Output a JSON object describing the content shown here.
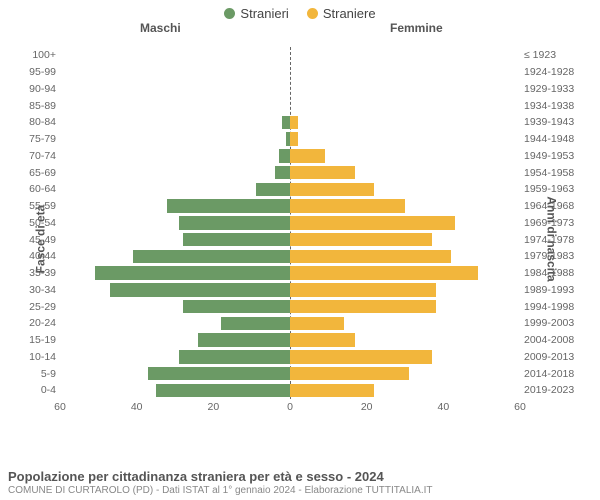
{
  "legend": {
    "male": {
      "label": "Stranieri",
      "color": "#6b9a65"
    },
    "female": {
      "label": "Straniere",
      "color": "#f2b63c"
    }
  },
  "headers": {
    "left": "Maschi",
    "right": "Femmine"
  },
  "yaxis_left_title": "Fasce di età",
  "yaxis_right_title": "Anni di nascita",
  "chart": {
    "type": "population-pyramid",
    "xmax": 60,
    "xticks_left": [
      60,
      40,
      20,
      0
    ],
    "xticks_right": [
      0,
      20,
      40,
      60
    ],
    "background_color": "#ffffff",
    "bar_gap_pct": 20,
    "rows": [
      {
        "age": "100+",
        "birth": "≤ 1923",
        "m": 0,
        "f": 0
      },
      {
        "age": "95-99",
        "birth": "1924-1928",
        "m": 0,
        "f": 0
      },
      {
        "age": "90-94",
        "birth": "1929-1933",
        "m": 0,
        "f": 0
      },
      {
        "age": "85-89",
        "birth": "1934-1938",
        "m": 0,
        "f": 0
      },
      {
        "age": "80-84",
        "birth": "1939-1943",
        "m": 2,
        "f": 2
      },
      {
        "age": "75-79",
        "birth": "1944-1948",
        "m": 1,
        "f": 2
      },
      {
        "age": "70-74",
        "birth": "1949-1953",
        "m": 3,
        "f": 9
      },
      {
        "age": "65-69",
        "birth": "1954-1958",
        "m": 4,
        "f": 17
      },
      {
        "age": "60-64",
        "birth": "1959-1963",
        "m": 9,
        "f": 22
      },
      {
        "age": "55-59",
        "birth": "1964-1968",
        "m": 32,
        "f": 30
      },
      {
        "age": "50-54",
        "birth": "1969-1973",
        "m": 29,
        "f": 43
      },
      {
        "age": "45-49",
        "birth": "1974-1978",
        "m": 28,
        "f": 37
      },
      {
        "age": "40-44",
        "birth": "1979-1983",
        "m": 41,
        "f": 42
      },
      {
        "age": "35-39",
        "birth": "1984-1988",
        "m": 51,
        "f": 49
      },
      {
        "age": "30-34",
        "birth": "1989-1993",
        "m": 47,
        "f": 38
      },
      {
        "age": "25-29",
        "birth": "1994-1998",
        "m": 28,
        "f": 38
      },
      {
        "age": "20-24",
        "birth": "1999-2003",
        "m": 18,
        "f": 14
      },
      {
        "age": "15-19",
        "birth": "2004-2008",
        "m": 24,
        "f": 17
      },
      {
        "age": "10-14",
        "birth": "2009-2013",
        "m": 29,
        "f": 37
      },
      {
        "age": "5-9",
        "birth": "2014-2018",
        "m": 37,
        "f": 31
      },
      {
        "age": "0-4",
        "birth": "2019-2023",
        "m": 35,
        "f": 22
      }
    ]
  },
  "footer": {
    "title": "Popolazione per cittadinanza straniera per età e sesso - 2024",
    "subtitle": "COMUNE DI CURTAROLO (PD) - Dati ISTAT al 1° gennaio 2024 - Elaborazione TUTTITALIA.IT"
  }
}
